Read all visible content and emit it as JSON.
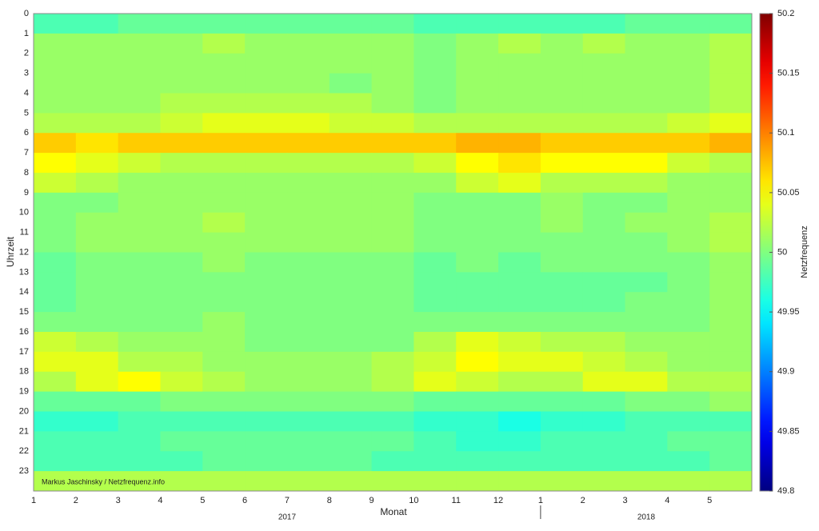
{
  "chart_data": {
    "type": "heatmap",
    "ylabel": "Uhrzeit",
    "xlabel": "Monat",
    "colorbar_label": "Netzfrequenz",
    "annotation": "Markus Jaschinsky / Netzfrequenz.info",
    "rows": [
      0,
      1,
      2,
      3,
      4,
      5,
      6,
      7,
      8,
      9,
      10,
      11,
      12,
      13,
      14,
      15,
      16,
      17,
      18,
      19,
      20,
      21,
      22,
      23
    ],
    "categories": [
      1,
      2,
      3,
      4,
      5,
      6,
      7,
      8,
      9,
      10,
      11,
      12,
      1,
      2,
      3,
      4,
      5
    ],
    "years": [
      "2017",
      "2018"
    ],
    "colormap": "jet",
    "clim": [
      49.8,
      50.2
    ],
    "cticks": [
      49.8,
      49.85,
      49.9,
      49.95,
      50,
      50.05,
      50.1,
      50.15,
      50.2
    ],
    "values": [
      [
        49.98,
        49.98,
        49.99,
        49.99,
        49.99,
        49.99,
        49.99,
        49.99,
        49.99,
        49.98,
        49.98,
        49.98,
        49.98,
        49.98,
        49.99,
        49.99,
        49.99
      ],
      [
        50.01,
        50.01,
        50.01,
        50.01,
        50.02,
        50.01,
        50.01,
        50.01,
        50.01,
        50.0,
        50.01,
        50.02,
        50.01,
        50.02,
        50.01,
        50.01,
        50.02
      ],
      [
        50.01,
        50.01,
        50.01,
        50.01,
        50.01,
        50.01,
        50.01,
        50.01,
        50.01,
        50.0,
        50.01,
        50.01,
        50.01,
        50.01,
        50.01,
        50.01,
        50.02
      ],
      [
        50.01,
        50.01,
        50.01,
        50.01,
        50.01,
        50.01,
        50.01,
        50.0,
        50.01,
        50.0,
        50.01,
        50.01,
        50.01,
        50.01,
        50.01,
        50.01,
        50.02
      ],
      [
        50.01,
        50.01,
        50.01,
        50.02,
        50.02,
        50.02,
        50.02,
        50.02,
        50.01,
        50.0,
        50.01,
        50.01,
        50.01,
        50.01,
        50.01,
        50.01,
        50.02
      ],
      [
        50.02,
        50.02,
        50.02,
        50.03,
        50.04,
        50.04,
        50.04,
        50.03,
        50.03,
        50.02,
        50.02,
        50.02,
        50.02,
        50.02,
        50.02,
        50.03,
        50.04
      ],
      [
        50.07,
        50.06,
        50.07,
        50.07,
        50.07,
        50.07,
        50.07,
        50.07,
        50.07,
        50.07,
        50.08,
        50.08,
        50.07,
        50.07,
        50.07,
        50.07,
        50.08
      ],
      [
        50.05,
        50.04,
        50.03,
        50.02,
        50.02,
        50.02,
        50.02,
        50.02,
        50.02,
        50.03,
        50.05,
        50.06,
        50.05,
        50.05,
        50.05,
        50.03,
        50.02
      ],
      [
        50.03,
        50.02,
        50.01,
        50.01,
        50.01,
        50.01,
        50.01,
        50.01,
        50.01,
        50.01,
        50.03,
        50.04,
        50.02,
        50.02,
        50.02,
        50.01,
        50.01
      ],
      [
        50.0,
        50.0,
        50.01,
        50.01,
        50.01,
        50.01,
        50.01,
        50.01,
        50.01,
        50.0,
        50.0,
        50.0,
        50.01,
        50.0,
        50.0,
        50.01,
        50.01
      ],
      [
        50.0,
        50.01,
        50.01,
        50.01,
        50.02,
        50.01,
        50.01,
        50.01,
        50.01,
        50.0,
        50.0,
        50.0,
        50.01,
        50.0,
        50.01,
        50.01,
        50.02
      ],
      [
        50.0,
        50.01,
        50.01,
        50.01,
        50.01,
        50.01,
        50.01,
        50.01,
        50.01,
        50.0,
        50.0,
        50.0,
        50.0,
        50.0,
        50.0,
        50.01,
        50.02
      ],
      [
        49.99,
        50.0,
        50.0,
        50.0,
        50.01,
        50.0,
        50.0,
        50.0,
        50.0,
        49.99,
        50.0,
        49.99,
        50.0,
        50.0,
        50.0,
        50.0,
        50.01
      ],
      [
        49.99,
        50.0,
        50.0,
        50.0,
        50.0,
        50.0,
        50.0,
        50.0,
        50.0,
        49.99,
        49.99,
        49.99,
        49.99,
        49.99,
        49.99,
        50.0,
        50.01
      ],
      [
        49.99,
        50.0,
        50.0,
        50.0,
        50.0,
        50.0,
        50.0,
        50.0,
        50.0,
        49.99,
        49.99,
        49.99,
        49.99,
        49.99,
        50.0,
        50.0,
        50.01
      ],
      [
        50.0,
        50.0,
        50.0,
        50.0,
        50.01,
        50.0,
        50.0,
        50.0,
        50.0,
        50.0,
        50.0,
        50.0,
        50.0,
        50.0,
        50.0,
        50.0,
        50.01
      ],
      [
        50.03,
        50.02,
        50.01,
        50.01,
        50.01,
        50.0,
        50.0,
        50.0,
        50.0,
        50.02,
        50.04,
        50.03,
        50.02,
        50.02,
        50.01,
        50.01,
        50.01
      ],
      [
        50.04,
        50.04,
        50.02,
        50.02,
        50.01,
        50.01,
        50.01,
        50.01,
        50.02,
        50.03,
        50.05,
        50.04,
        50.04,
        50.03,
        50.02,
        50.01,
        50.01
      ],
      [
        50.02,
        50.04,
        50.05,
        50.03,
        50.02,
        50.01,
        50.01,
        50.01,
        50.02,
        50.04,
        50.03,
        50.02,
        50.02,
        50.04,
        50.04,
        50.02,
        50.02
      ],
      [
        49.99,
        49.99,
        49.99,
        50.0,
        50.0,
        50.0,
        50.0,
        50.0,
        50.0,
        49.99,
        49.99,
        49.99,
        49.99,
        49.99,
        50.0,
        50.0,
        50.01
      ],
      [
        49.97,
        49.97,
        49.98,
        49.98,
        49.98,
        49.98,
        49.98,
        49.98,
        49.98,
        49.97,
        49.97,
        49.96,
        49.97,
        49.97,
        49.98,
        49.98,
        49.98
      ],
      [
        49.98,
        49.98,
        49.98,
        49.99,
        49.99,
        49.99,
        49.99,
        49.99,
        49.99,
        49.98,
        49.97,
        49.97,
        49.98,
        49.98,
        49.98,
        49.99,
        49.99
      ],
      [
        49.98,
        49.98,
        49.98,
        49.98,
        49.99,
        49.99,
        49.99,
        49.99,
        49.98,
        49.98,
        49.98,
        49.98,
        49.98,
        49.98,
        49.98,
        49.98,
        49.99
      ],
      [
        50.02,
        50.02,
        50.02,
        50.02,
        50.02,
        50.02,
        50.02,
        50.02,
        50.02,
        50.02,
        50.02,
        50.02,
        50.02,
        50.02,
        50.02,
        50.02,
        50.02
      ]
    ]
  }
}
